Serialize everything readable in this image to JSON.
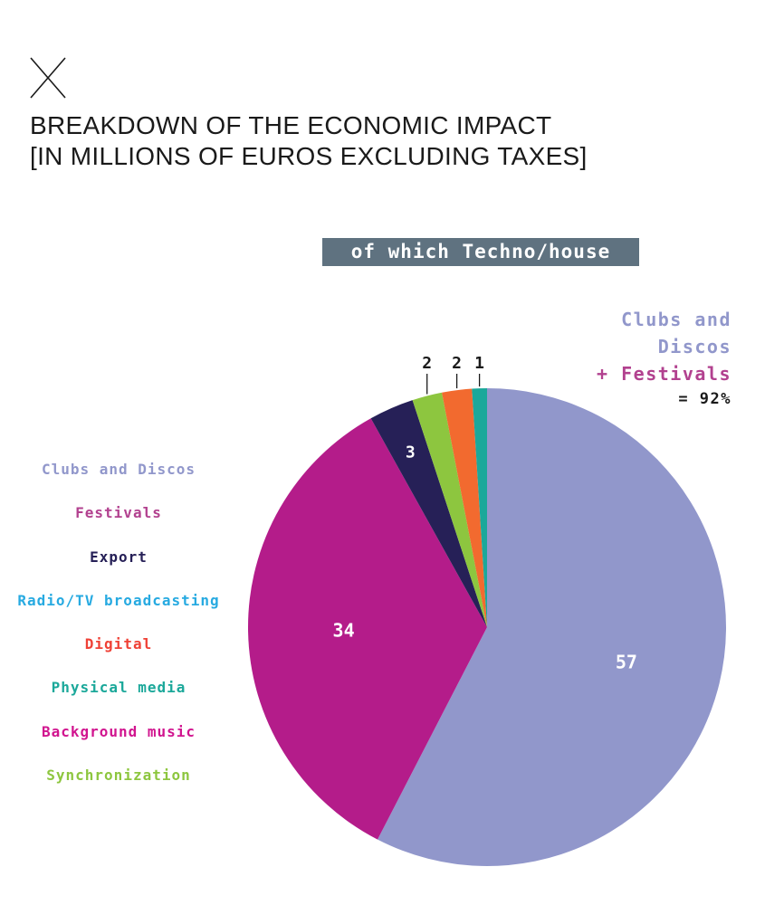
{
  "header": {
    "title_line1": "BREAKDOWN OF THE ECONOMIC IMPACT",
    "title_line2": "[IN MILLIONS OF EUROS EXCLUDING TAXES]"
  },
  "chart_data": {
    "type": "pie",
    "title": "BREAKDOWN OF THE ECONOMIC IMPACT [IN MILLIONS OF EUROS EXCLUDING TAXES]",
    "subtitle": "of which Techno/house",
    "slices": [
      {
        "label": "Clubs and Discos",
        "value": 57,
        "color": "#9197cb",
        "label_color": "#ffffff"
      },
      {
        "label": "Festivals",
        "value": 34,
        "color": "#b41c8a",
        "label_color": "#ffffff"
      },
      {
        "label": "Export",
        "value": 3,
        "color": "#262057",
        "label_color": "#ffffff"
      },
      {
        "label": "Synchronization",
        "value": 2,
        "color": "#8dc63f",
        "label_color": "#1a1a1a"
      },
      {
        "label": "Digital",
        "value": 2,
        "color": "#f26a2f",
        "label_color": "#1a1a1a"
      },
      {
        "label": "Physical media",
        "value": 1,
        "color": "#1ba89a",
        "label_color": "#1a1a1a"
      }
    ],
    "legend": [
      {
        "label": "Clubs and Discos",
        "color": "#9197cb"
      },
      {
        "label": "Festivals",
        "color": "#b2418f"
      },
      {
        "label": "Export",
        "color": "#262057"
      },
      {
        "label": "Radio/TV broadcasting",
        "color": "#27aae1"
      },
      {
        "label": "Digital",
        "color": "#ef4136"
      },
      {
        "label": "Physical media",
        "color": "#1ba89a"
      },
      {
        "label": "Background music",
        "color": "#d1158f"
      },
      {
        "label": "Synchronization",
        "color": "#8dc63f"
      }
    ],
    "annotation": {
      "line1": "Clubs and",
      "line2": "Discos",
      "line3": "+ Festivals",
      "line4": "= 92%"
    }
  }
}
